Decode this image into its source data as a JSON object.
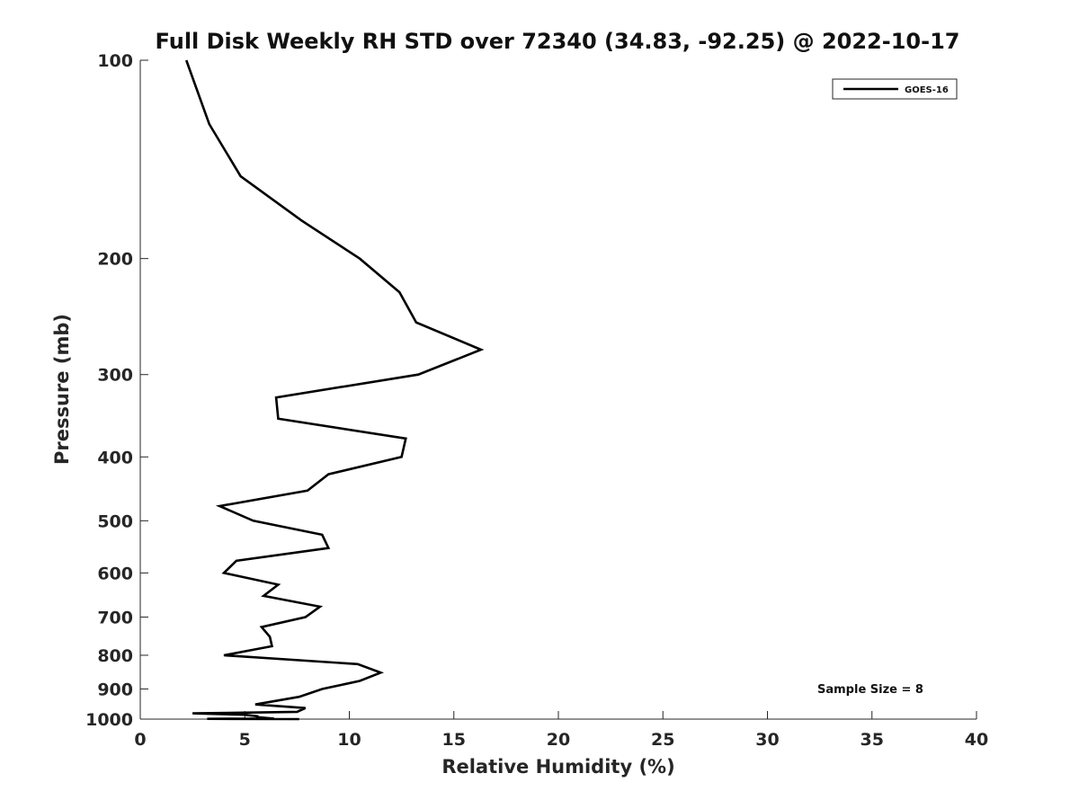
{
  "chart_data": {
    "type": "line",
    "title": "Full Disk Weekly RH STD over 72340 (34.83, -92.25) @ 2022-10-17",
    "xlabel": "Relative Humidity (%)",
    "ylabel": "Pressure (mb)",
    "xlim": [
      0,
      40
    ],
    "ylim": [
      100,
      1000
    ],
    "y_scale": "log",
    "y_reversed": true,
    "x_ticks": [
      0,
      5,
      10,
      15,
      20,
      25,
      30,
      35,
      40
    ],
    "y_ticks": [
      100,
      200,
      300,
      400,
      500,
      600,
      700,
      800,
      900,
      1000
    ],
    "grid": false,
    "legend_position": "top-right",
    "colors": {
      "series": "#000000",
      "axis": "#262626"
    },
    "series": [
      {
        "name": "GOES-16",
        "points": [
          [
            2.2,
            100
          ],
          [
            3.3,
            125
          ],
          [
            4.8,
            150
          ],
          [
            7.7,
            175
          ],
          [
            10.5,
            200
          ],
          [
            12.4,
            225
          ],
          [
            13.2,
            250
          ],
          [
            16.3,
            275
          ],
          [
            13.3,
            300
          ],
          [
            6.5,
            325
          ],
          [
            6.6,
            350
          ],
          [
            12.7,
            375
          ],
          [
            12.5,
            400
          ],
          [
            9.0,
            425
          ],
          [
            8.0,
            450
          ],
          [
            3.8,
            475
          ],
          [
            5.4,
            500
          ],
          [
            8.7,
            525
          ],
          [
            9.0,
            550
          ],
          [
            4.6,
            575
          ],
          [
            4.0,
            600
          ],
          [
            6.6,
            625
          ],
          [
            5.9,
            650
          ],
          [
            8.6,
            675
          ],
          [
            7.9,
            700
          ],
          [
            5.8,
            725
          ],
          [
            6.2,
            750
          ],
          [
            6.3,
            775
          ],
          [
            4.0,
            800
          ],
          [
            10.4,
            825
          ],
          [
            11.5,
            850
          ],
          [
            10.5,
            875
          ],
          [
            8.7,
            900
          ],
          [
            7.6,
            925
          ],
          [
            5.5,
            950
          ],
          [
            7.9,
            962
          ],
          [
            7.5,
            975
          ],
          [
            2.5,
            980
          ],
          [
            5.0,
            985
          ],
          [
            5.6,
            990
          ],
          [
            5.6,
            993
          ],
          [
            6.0,
            996
          ],
          [
            6.4,
            998
          ],
          [
            3.2,
            999
          ],
          [
            7.6,
            1000
          ]
        ]
      }
    ],
    "annotation": "Sample Size = 8"
  }
}
